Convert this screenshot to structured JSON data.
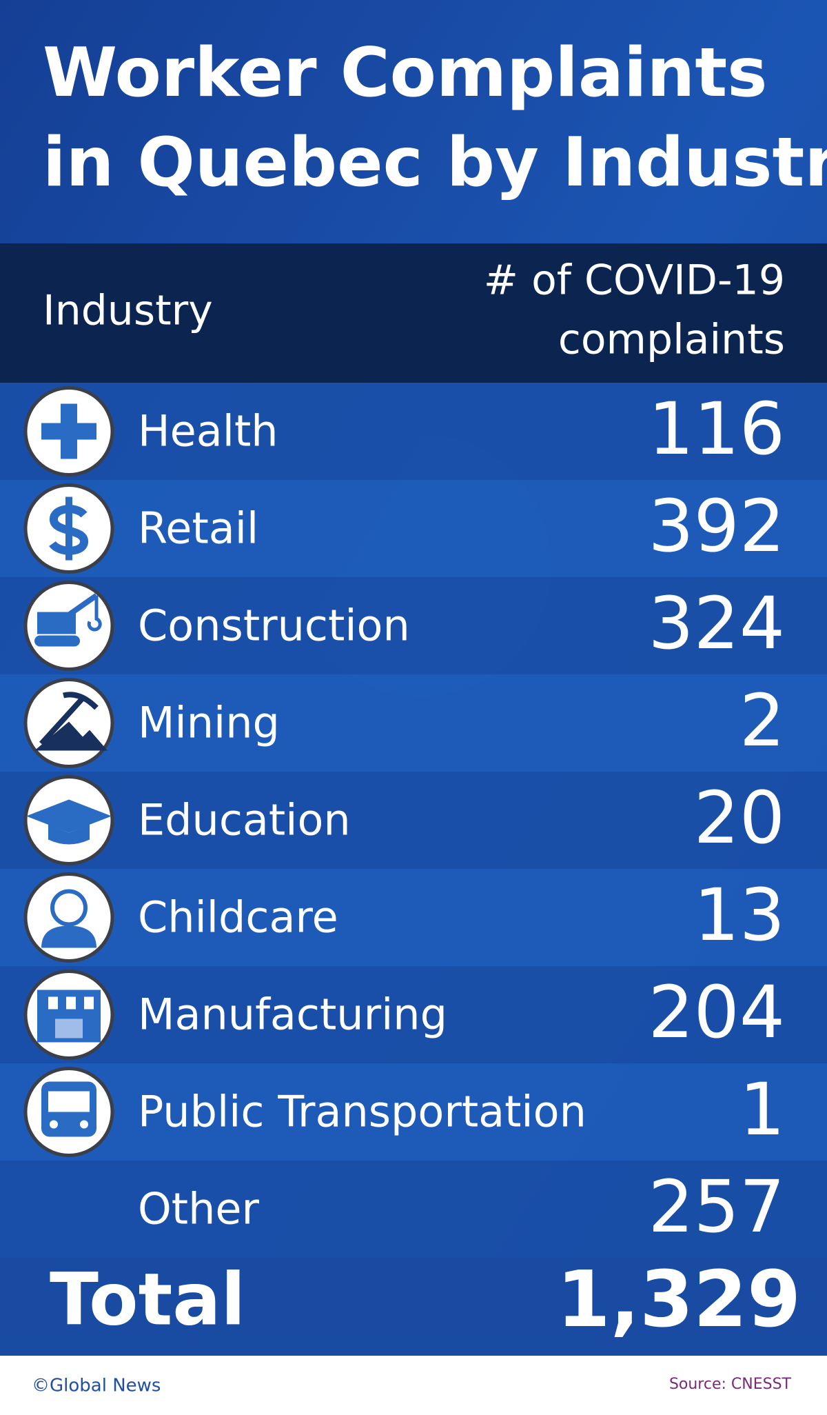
{
  "header": {
    "title_lines": [
      "Worker Complaints",
      "in Quebec by Industry"
    ]
  },
  "table": {
    "columns": [
      "Industry",
      "# of COVID-19",
      "complaints"
    ],
    "rows": [
      [
        "Health",
        116
      ],
      [
        "Retail",
        392
      ],
      [
        "Construction",
        324
      ],
      [
        "Mining",
        2
      ],
      [
        "Education",
        20
      ],
      [
        "Childcare",
        13
      ],
      [
        "Manufacturing",
        204
      ],
      [
        "Public Transportation",
        1
      ],
      [
        "Other",
        257
      ]
    ],
    "total": [
      "Total",
      "1,329"
    ]
  },
  "footer": {
    "credit": "©Global News",
    "source": "Source: CNESST"
  }
}
